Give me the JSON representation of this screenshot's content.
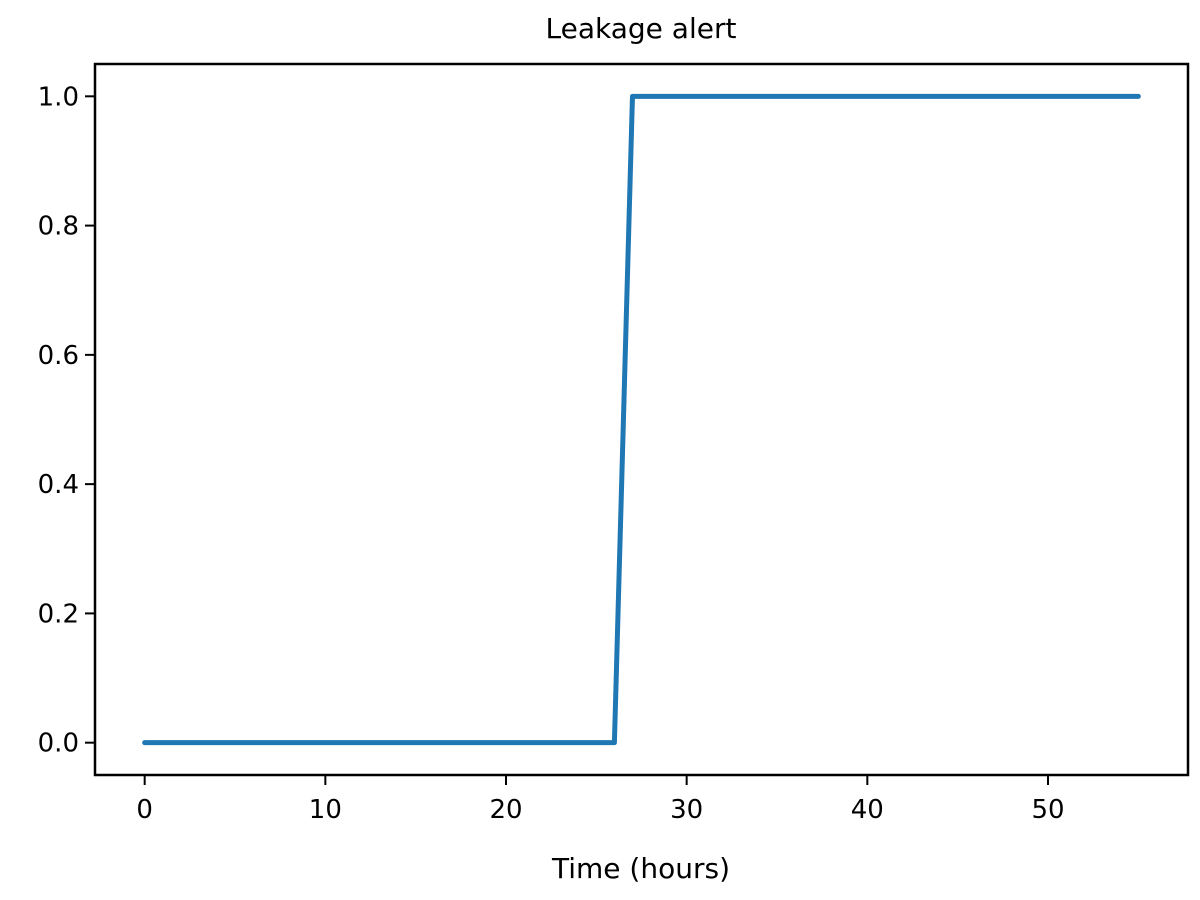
{
  "chart_data": {
    "type": "line",
    "title": "Leakage alert",
    "xlabel": "Time (hours)",
    "ylabel": "",
    "xlim": [
      -2.75,
      57.75
    ],
    "ylim": [
      -0.05,
      1.05
    ],
    "x_ticks": [
      0,
      10,
      20,
      30,
      40,
      50
    ],
    "y_ticks": [
      0.0,
      0.2,
      0.4,
      0.6,
      0.8,
      1.0
    ],
    "x_tick_labels": [
      "0",
      "10",
      "20",
      "30",
      "40",
      "50"
    ],
    "y_tick_labels": [
      "0.0",
      "0.2",
      "0.4",
      "0.6",
      "0.8",
      "1.0"
    ],
    "grid": false,
    "legend": "none",
    "series": [
      {
        "color": "#1f77b4",
        "x": [
          0,
          26,
          27,
          55
        ],
        "y": [
          0,
          0,
          1,
          1
        ]
      }
    ]
  }
}
